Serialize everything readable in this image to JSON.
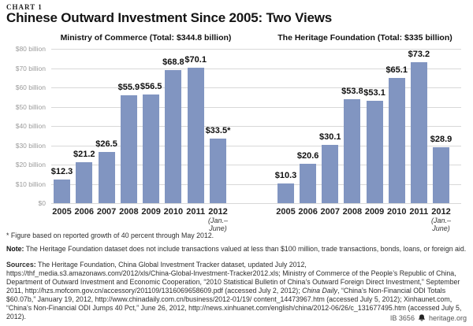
{
  "header": {
    "kicker": "CHART 1",
    "title": "Chinese Outward Investment Since 2005: Two Views"
  },
  "chart_data": {
    "type": "bar",
    "ylim": [
      0,
      80
    ],
    "grid": true,
    "legend": false,
    "y_ticks": [
      "$80 billion",
      "$70 billion",
      "$60 billion",
      "$50 billion",
      "$40 billion",
      "$30 billion",
      "$20 billion",
      "$10 billion",
      "$0"
    ],
    "categories": [
      "2005",
      "2006",
      "2007",
      "2008",
      "2009",
      "2010",
      "2011",
      "2012"
    ],
    "last_category_note": [
      "(Jan.–",
      "June)"
    ],
    "bar_color": "#8195c1",
    "panels": [
      {
        "title": "Ministry of Commerce (Total: $344.8 billion)",
        "values": [
          12.3,
          21.2,
          26.5,
          55.9,
          56.5,
          68.8,
          70.1,
          33.5
        ],
        "labels": [
          "$12.3",
          "$21.2",
          "$26.5",
          "$55.9",
          "$56.5",
          "$68.8",
          "$70.1",
          "$33.5*"
        ]
      },
      {
        "title": "The Heritage Foundation (Total: $335 billion)",
        "values": [
          10.3,
          20.6,
          30.1,
          53.8,
          53.1,
          65.1,
          73.2,
          28.9
        ],
        "labels": [
          "$10.3",
          "$20.6",
          "$30.1",
          "$53.8",
          "$53.1",
          "$65.1",
          "$73.2",
          "$28.9"
        ]
      }
    ]
  },
  "footnotes": {
    "asterisk": "* Figure based on reported growth of 40 percent through May 2012.",
    "note_label": "Note:",
    "note_text": " The Heritage Foundation dataset does not include transactions valued at less than $100 million, trade transactions, bonds, loans, or foreign aid.",
    "sources_segments": [
      {
        "text": "Sources:",
        "bold": true
      },
      {
        "text": " The Heritage Foundation, China Global Investment Tracker dataset, updated July 2012,  https://thf_media.s3.amazonaws.com/2012/xls/China-Global-Investment-Tracker2012.xls; Ministry of Commerce of the People’s Republic of China, Department of Outward Investment and Economic Cooperation, “2010 Statistical Bulletin of China’s Outward Foreign Direct Investment,” September 2011, http://hzs.mofcom.gov.cn/accessory/201109/1316069658609.pdf (accessed July 2, 2012); "
      },
      {
        "text": "China Daily",
        "italic": true
      },
      {
        "text": ", “China’s Non-Financial ODI Totals $60.07b,” January 19, 2012, http://www.chinadaily.com.cn/business/2012-01/19/ content_14473967.htm (accessed July 5, 2012); Xinhaunet.com, “China’s Non-Financial ODI Jumps 40 Pct,” June 26, 2012, http://news.xinhuanet.com/english/china/2012-06/26/c_131677495.htm (accessed July 5, 2012)."
      }
    ]
  },
  "footer": {
    "doc_id": "IB 3656",
    "bell_icon": "liberty-bell-icon",
    "site": "heritage.org"
  }
}
